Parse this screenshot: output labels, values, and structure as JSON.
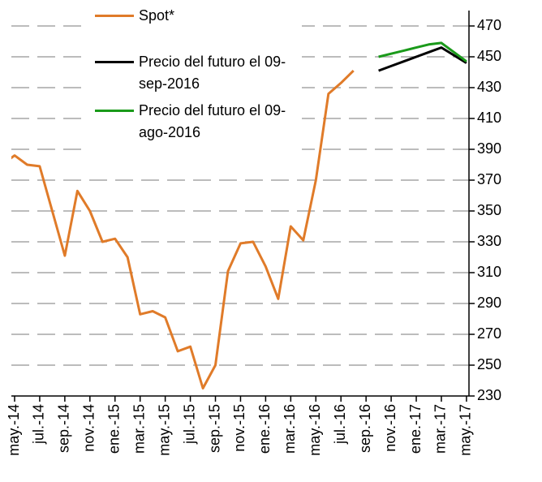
{
  "chart_data": {
    "type": "line",
    "categories": [
      null,
      "may.-14",
      null,
      "jul.-14",
      null,
      "sep.-14",
      null,
      "nov.-14",
      null,
      "ene.-15",
      null,
      "mar.-15",
      null,
      "may.-15",
      null,
      "jul.-15",
      null,
      "sep.-15",
      null,
      "nov.-15",
      null,
      "ene.-16",
      null,
      "mar.-16",
      null,
      "may.-16",
      null,
      "jul.-16",
      null,
      "sep.-16",
      null,
      "nov.-16",
      null,
      "ene.-17",
      null,
      "mar.-17",
      null,
      "may.-17"
    ],
    "series": [
      {
        "name": "Spot*",
        "color": "#e07b29",
        "values": [
          380,
          386,
          380,
          379,
          350,
          321,
          363,
          350,
          330,
          332,
          320,
          283,
          285,
          281,
          259,
          262,
          235,
          250,
          311,
          329,
          330,
          314,
          293,
          340,
          331,
          370,
          426,
          433,
          441,
          null,
          null,
          null,
          null,
          null,
          null,
          null,
          null,
          null
        ]
      },
      {
        "name": "Precio del futuro el 09-sep-2016",
        "color": "#000000",
        "values": [
          null,
          null,
          null,
          null,
          null,
          null,
          null,
          null,
          null,
          null,
          null,
          null,
          null,
          null,
          null,
          null,
          null,
          null,
          null,
          null,
          null,
          null,
          null,
          null,
          null,
          null,
          null,
          null,
          null,
          null,
          441,
          444,
          447,
          450,
          453,
          456,
          451,
          446
        ]
      },
      {
        "name": "Precio del futuro el 09-ago-2016",
        "color": "#1a9a1a",
        "values": [
          null,
          null,
          null,
          null,
          null,
          null,
          null,
          null,
          null,
          null,
          null,
          null,
          null,
          null,
          null,
          null,
          null,
          null,
          null,
          null,
          null,
          null,
          null,
          null,
          null,
          null,
          null,
          null,
          null,
          null,
          450,
          452,
          454,
          456,
          458,
          459,
          453,
          447
        ]
      }
    ],
    "ylim": [
      230,
      480
    ],
    "yticks": [
      230,
      250,
      270,
      290,
      310,
      330,
      350,
      370,
      390,
      410,
      430,
      450,
      470
    ],
    "grid": true,
    "legend": "upper left"
  }
}
